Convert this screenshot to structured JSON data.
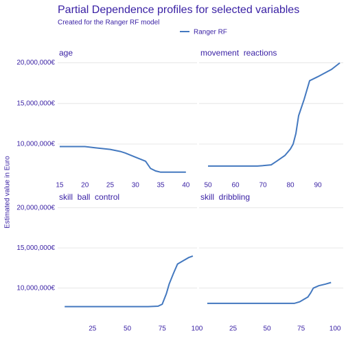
{
  "title": "Partial Dependence profiles for selected variables",
  "subtitle": "Created for the Ranger RF model",
  "ylabel": "Estimated value in Euro",
  "chart_data": [
    {
      "type": "line",
      "title": "age",
      "x": [
        15,
        20,
        22,
        25,
        27,
        28,
        30,
        32,
        33,
        34,
        35,
        40
      ],
      "series": [
        {
          "name": "Ranger RF",
          "color": "#4378bf",
          "values": [
            9700000,
            9700000,
            9550000,
            9350000,
            9100000,
            8900000,
            8400000,
            7900000,
            7000000,
            6700000,
            6550000,
            6550000
          ]
        }
      ],
      "xlim": [
        14.6,
        42.2
      ],
      "xticks": [
        15,
        20,
        25,
        30,
        35,
        40
      ],
      "ylim": [
        5600000,
        20300000
      ],
      "yticks": [
        {
          "value": 10000000,
          "label": "10,000,000€"
        },
        {
          "value": 15000000,
          "label": "15,000,000€"
        },
        {
          "value": 20000000,
          "label": "20,000,000€"
        }
      ],
      "grid": true
    },
    {
      "type": "line",
      "title": "movement  reactions",
      "x": [
        50,
        68,
        70,
        73,
        75,
        78,
        80,
        81,
        82,
        83,
        85,
        87,
        90,
        95,
        98
      ],
      "series": [
        {
          "name": "Ranger RF",
          "color": "#4378bf",
          "values": [
            7300000,
            7300000,
            7350000,
            7450000,
            7900000,
            8600000,
            9400000,
            10000000,
            11300000,
            13500000,
            15500000,
            17800000,
            18300000,
            19200000,
            20000000
          ]
        }
      ],
      "xlim": [
        46.75,
        99.25
      ],
      "xticks": [
        50,
        60,
        70,
        80,
        90
      ],
      "ylim": [
        5600000,
        20300000
      ],
      "yticks": [
        {
          "value": 10000000,
          "label": "10,000,000€"
        },
        {
          "value": 15000000,
          "label": "15,000,000€"
        },
        {
          "value": 20000000,
          "label": "20,000,000€"
        }
      ],
      "grid": true
    },
    {
      "type": "line",
      "title": "skill  ball  control",
      "x": [
        5,
        65,
        72,
        75,
        78,
        80,
        83,
        86,
        90,
        94,
        97
      ],
      "series": [
        {
          "name": "Ranger RF",
          "color": "#4378bf",
          "values": [
            7700000,
            7700000,
            7750000,
            8000000,
            9300000,
            10500000,
            11800000,
            13000000,
            13400000,
            13800000,
            14000000
          ]
        }
      ],
      "xlim": [
        0,
        100
      ],
      "xticks": [
        25,
        50,
        75,
        100
      ],
      "ylim": [
        5700000,
        20400000
      ],
      "yticks": [
        {
          "value": 10000000,
          "label": "10,000,000€"
        },
        {
          "value": 15000000,
          "label": "15,000,000€"
        },
        {
          "value": 20000000,
          "label": "20,000,000€"
        }
      ],
      "grid": true
    },
    {
      "type": "line",
      "title": "skill  dribbling",
      "x": [
        6,
        70,
        74,
        77,
        80,
        82,
        84,
        88,
        93,
        97
      ],
      "series": [
        {
          "name": "Ranger RF",
          "color": "#4378bf",
          "values": [
            8100000,
            8100000,
            8300000,
            8600000,
            8900000,
            9400000,
            10000000,
            10300000,
            10500000,
            10700000
          ]
        }
      ],
      "xlim": [
        0,
        106
      ],
      "xticks": [
        25,
        50,
        75,
        100
      ],
      "ylim": [
        5700000,
        20400000
      ],
      "yticks": [
        {
          "value": 10000000,
          "label": "10,000,000€"
        },
        {
          "value": 15000000,
          "label": "15,000,000€"
        },
        {
          "value": 20000000,
          "label": "20,000,000€"
        }
      ],
      "grid": true
    }
  ]
}
